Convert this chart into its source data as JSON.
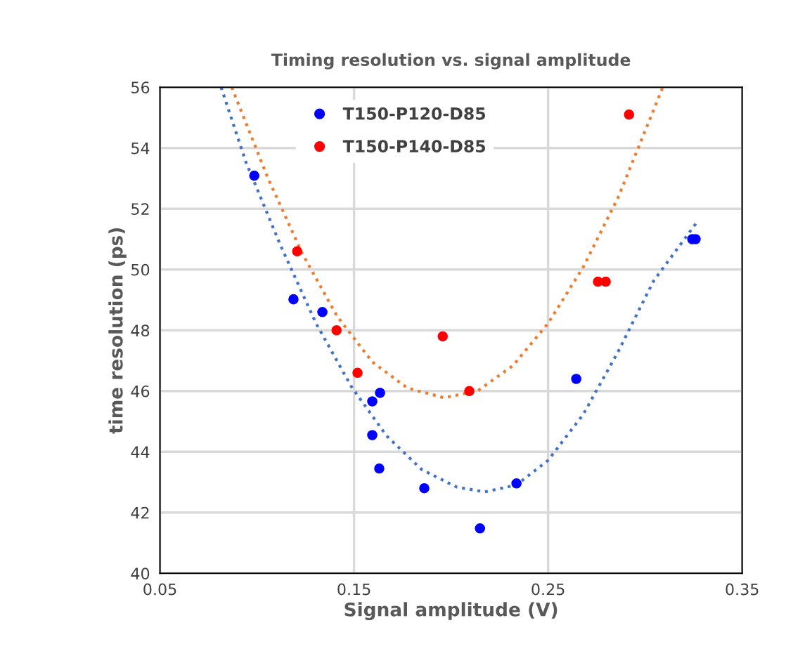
{
  "chart_data": {
    "type": "scatter",
    "title": "Timing resolution vs. signal amplitude",
    "xlabel": "Signal amplitude (V)",
    "ylabel": "time resolution (ps)",
    "xlim": [
      0.05,
      0.35
    ],
    "xticks": [
      {
        "value": 0.05,
        "label": "0.05"
      },
      {
        "value": 0.15,
        "label": "0.15"
      },
      {
        "value": 0.25,
        "label": "0.25"
      },
      {
        "value": 0.35,
        "label": "0.35"
      }
    ],
    "ylim": [
      40,
      56
    ],
    "yticks": [
      40,
      42,
      44,
      46,
      48,
      50,
      52,
      54,
      56
    ],
    "grid": true,
    "legend": "top left",
    "marker": "circle",
    "series": [
      {
        "name": "T150-P120-D85",
        "color": "#0000ff",
        "x": [
          0.0986,
          0.1188,
          0.1337,
          0.1594,
          0.1634,
          0.1594,
          0.163,
          0.1862,
          0.2149,
          0.2337,
          0.2645,
          0.3243,
          0.326
        ],
        "values": [
          53.09,
          49.02,
          48.6,
          45.66,
          45.94,
          44.55,
          43.45,
          42.8,
          41.48,
          42.96,
          46.4,
          51.0,
          51.0
        ]
      },
      {
        "name": "T150-P140-D85",
        "color": "#ff0000",
        "x": [
          0.1207,
          0.141,
          0.1518,
          0.1957,
          0.2094,
          0.2757,
          0.2797,
          0.2917
        ],
        "values": [
          50.6,
          48.0,
          46.6,
          47.8,
          46.0,
          49.6,
          49.6,
          55.1
        ]
      },
      {
        "type": "line",
        "line_style": "dotted",
        "marker": "none",
        "color": "#4472c4",
        "x": [
          0.0815,
          0.0942,
          0.1123,
          0.1304,
          0.1486,
          0.1667,
          0.1848,
          0.2029,
          0.2174,
          0.2337,
          0.25,
          0.2681,
          0.2862,
          0.3043,
          0.3261
        ],
        "values": [
          56,
          53.55,
          50.77,
          48.23,
          46.15,
          44.53,
          43.42,
          42.84,
          42.68,
          42.91,
          43.72,
          45.23,
          47.31,
          49.62,
          51.51
        ]
      },
      {
        "type": "line",
        "line_style": "dotted",
        "marker": "none",
        "color": "#ed7d31",
        "x": [
          0.087,
          0.1051,
          0.1232,
          0.1413,
          0.1594,
          0.1775,
          0.1964,
          0.2138,
          0.2319,
          0.25,
          0.2681,
          0.2862,
          0.3091
        ],
        "values": [
          56,
          53.09,
          50.54,
          48.46,
          46.96,
          46.1,
          45.78,
          46.01,
          46.84,
          48.23,
          50.08,
          52.39,
          56
        ]
      }
    ]
  }
}
